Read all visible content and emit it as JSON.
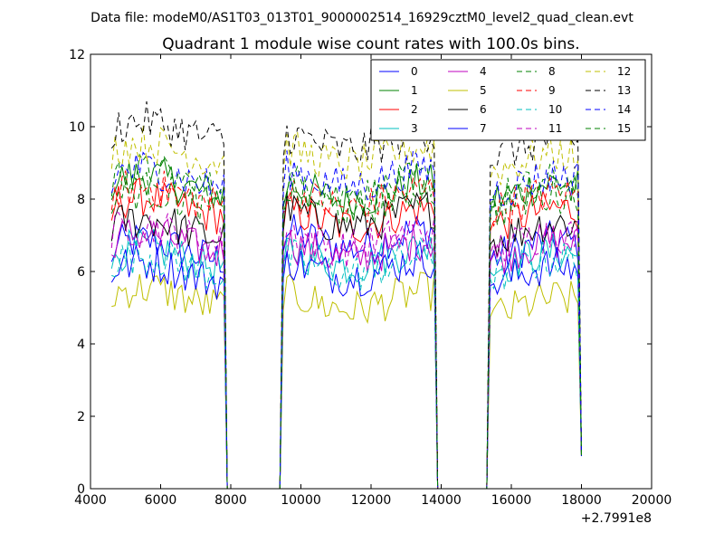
{
  "figure": {
    "suptitle": "Data file: modeM0/AS1T03_013T01_9000002514_16929cztM0_level2_quad_clean.evt"
  },
  "chart_data": {
    "type": "line",
    "title": "Quadrant 1 module wise count rates with 100.0s bins.",
    "xlabel": "",
    "ylabel": "",
    "xlim": [
      4000,
      20000
    ],
    "ylim": [
      0,
      12
    ],
    "x_ticks": [
      4000,
      6000,
      8000,
      10000,
      12000,
      14000,
      16000,
      18000,
      20000
    ],
    "y_ticks": [
      0,
      2,
      4,
      6,
      8,
      10,
      12
    ],
    "x_offset_label": "+2.7991e8",
    "grid": false,
    "legend": {
      "placement": "top-right",
      "columns": 4
    },
    "bin_width": 100,
    "x_start": 4600,
    "x_end": 18000,
    "gaps": [
      [
        7900,
        9400
      ],
      [
        13900,
        15300
      ]
    ],
    "segments": [
      [
        4600,
        7800
      ],
      [
        9500,
        13800
      ],
      [
        15400,
        18000
      ]
    ],
    "series": [
      {
        "name": "0",
        "color": "#0000ff",
        "dash": "solid",
        "levels": [
          6.6,
          6.9,
          6.6
        ]
      },
      {
        "name": "1",
        "color": "#008000",
        "dash": "solid",
        "levels": [
          8.4,
          8.2,
          8.2
        ]
      },
      {
        "name": "2",
        "color": "#ff0000",
        "dash": "solid",
        "levels": [
          7.8,
          7.5,
          7.5
        ]
      },
      {
        "name": "3",
        "color": "#00bfbf",
        "dash": "solid",
        "levels": [
          6.4,
          6.4,
          6.3
        ]
      },
      {
        "name": "4",
        "color": "#bf00bf",
        "dash": "solid",
        "levels": [
          6.8,
          6.6,
          6.6
        ]
      },
      {
        "name": "5",
        "color": "#bfbf00",
        "dash": "solid",
        "levels": [
          5.3,
          5.2,
          5.0
        ]
      },
      {
        "name": "6",
        "color": "#000000",
        "dash": "solid",
        "levels": [
          7.2,
          7.5,
          7.1
        ]
      },
      {
        "name": "7",
        "color": "#0000ff",
        "dash": "solid",
        "levels": [
          6.0,
          6.1,
          5.9
        ]
      },
      {
        "name": "8",
        "color": "#008000",
        "dash": "dashed",
        "levels": [
          8.5,
          8.3,
          8.2
        ]
      },
      {
        "name": "9",
        "color": "#ff0000",
        "dash": "dashed",
        "levels": [
          8.1,
          8.0,
          7.9
        ]
      },
      {
        "name": "10",
        "color": "#00bfbf",
        "dash": "dashed",
        "levels": [
          6.2,
          6.2,
          6.1
        ]
      },
      {
        "name": "11",
        "color": "#bf00bf",
        "dash": "dashed",
        "levels": [
          7.0,
          6.9,
          6.8
        ]
      },
      {
        "name": "12",
        "color": "#bfbf00",
        "dash": "dashed",
        "levels": [
          9.3,
          9.2,
          9.0
        ]
      },
      {
        "name": "13",
        "color": "#000000",
        "dash": "dashed",
        "levels": [
          9.9,
          9.6,
          9.4
        ]
      },
      {
        "name": "14",
        "color": "#0000ff",
        "dash": "dashed",
        "levels": [
          8.6,
          8.6,
          8.4
        ]
      },
      {
        "name": "15",
        "color": "#008000",
        "dash": "dashed",
        "levels": [
          8.0,
          8.0,
          7.9
        ]
      }
    ]
  }
}
